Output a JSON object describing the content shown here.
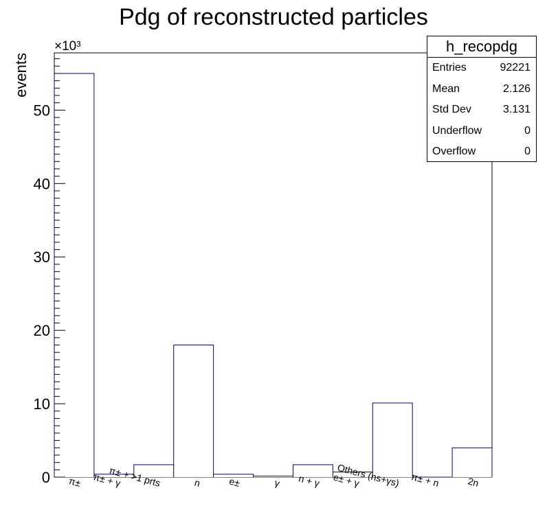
{
  "chart_data": {
    "type": "bar",
    "title": "Pdg of reconstructed particles",
    "ylabel": "events",
    "xlabel": "",
    "y_multiplier": "×10³",
    "ylim": [
      0,
      57.8
    ],
    "yticks": [
      0,
      10,
      20,
      30,
      40,
      50
    ],
    "categories": [
      "π±",
      "π± + γ",
      "π± + >1 prts",
      "n",
      "e±",
      "γ",
      "n + γ",
      "e± + γ",
      "Others (ns+γs)",
      "π± + n",
      "2n"
    ],
    "values": [
      55.0,
      0.4,
      1.7,
      18.0,
      0.4,
      0.15,
      1.7,
      0.7,
      10.1,
      0.0,
      4.0
    ],
    "bar_color": "#000080",
    "stats": {
      "title": "h_recopdg",
      "rows": [
        {
          "label": "Entries",
          "value": "92221"
        },
        {
          "label": "Mean",
          "value": "2.126"
        },
        {
          "label": "Std Dev",
          "value": "3.131"
        },
        {
          "label": "Underflow",
          "value": "0"
        },
        {
          "label": "Overflow",
          "value": "0"
        }
      ]
    }
  }
}
